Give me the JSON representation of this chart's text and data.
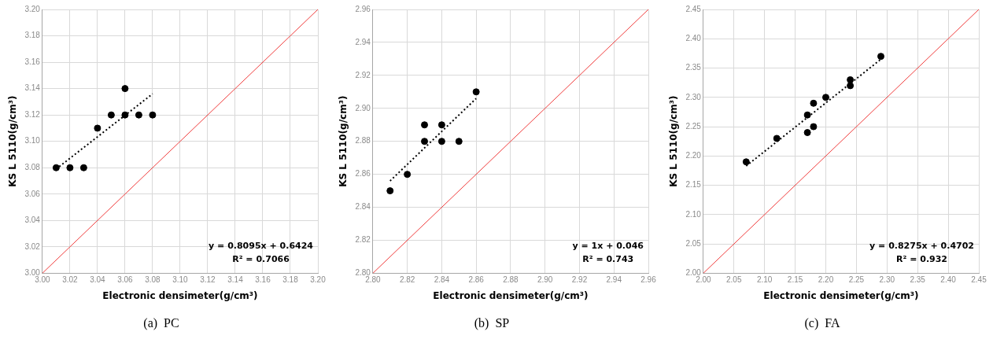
{
  "chart_data": [
    {
      "type": "scatter",
      "title": "(a)  PC",
      "xlabel": "Electronic densimeter(g/cm³)",
      "ylabel": "KS L 5110(g/cm³)",
      "annotations": [
        "y = 0.8095x + 0.6424",
        "R² = 0.7066"
      ],
      "xlim": [
        3.0,
        3.2
      ],
      "ylim": [
        3.0,
        3.2
      ],
      "xticks": [
        {
          "value": 3.0,
          "label": "3.00"
        },
        {
          "value": 3.02,
          "label": "3.02"
        },
        {
          "value": 3.04,
          "label": "3.04"
        },
        {
          "value": 3.06,
          "label": "3.06"
        },
        {
          "value": 3.08,
          "label": "3.08"
        },
        {
          "value": 3.1,
          "label": "3.10"
        },
        {
          "value": 3.12,
          "label": "3.12"
        },
        {
          "value": 3.14,
          "label": "3.14"
        },
        {
          "value": 3.16,
          "label": "3.16"
        },
        {
          "value": 3.18,
          "label": "3.18"
        },
        {
          "value": 3.2,
          "label": "3.20"
        }
      ],
      "yticks": [
        {
          "value": 3.0,
          "label": "3.00"
        },
        {
          "value": 3.02,
          "label": "3.02"
        },
        {
          "value": 3.04,
          "label": "3.04"
        },
        {
          "value": 3.06,
          "label": "3.06"
        },
        {
          "value": 3.08,
          "label": "3.08"
        },
        {
          "value": 3.1,
          "label": "3.10"
        },
        {
          "value": 3.12,
          "label": "3.12"
        },
        {
          "value": 3.14,
          "label": "3.14"
        },
        {
          "value": 3.16,
          "label": "3.16"
        },
        {
          "value": 3.18,
          "label": "3.18"
        },
        {
          "value": 3.2,
          "label": "3.20"
        }
      ],
      "grid": true,
      "series": [
        {
          "type": "scatter",
          "color": "#000000",
          "marker": "circle",
          "x": [
            3.01,
            3.02,
            3.03,
            3.04,
            3.05,
            3.06,
            3.06,
            3.07,
            3.08
          ],
          "values": [
            3.08,
            3.08,
            3.08,
            3.11,
            3.12,
            3.14,
            3.12,
            3.12,
            3.12
          ]
        },
        {
          "type": "line",
          "color": "#000000",
          "marker": "none",
          "line_style": "dotted",
          "x": [
            3.01,
            3.08
          ],
          "values": [
            3.079,
            3.136
          ]
        },
        {
          "type": "line",
          "color": "#f03c3c",
          "marker": "none",
          "line_style": "solid",
          "x": [
            3.0,
            3.2
          ],
          "values": [
            3.0,
            3.2
          ]
        }
      ]
    },
    {
      "type": "scatter",
      "title": "(b)  SP",
      "xlabel": "Electronic densimeter(g/cm³)",
      "ylabel": "KS L 5110(g/cm³)",
      "annotations": [
        "y = 1x + 0.046",
        "R² = 0.743"
      ],
      "xlim": [
        2.8,
        2.96
      ],
      "ylim": [
        2.8,
        2.96
      ],
      "xticks": [
        {
          "value": 2.8,
          "label": "2.80"
        },
        2.82,
        2.84,
        2.86,
        2.88,
        {
          "value": 2.9,
          "label": "2.90"
        },
        2.92,
        2.94,
        2.96
      ],
      "yticks": [
        {
          "value": 2.8,
          "label": "2.80"
        },
        2.82,
        2.84,
        2.86,
        2.88,
        {
          "value": 2.9,
          "label": "2.90"
        },
        2.92,
        2.94,
        2.96
      ],
      "grid": true,
      "series": [
        {
          "type": "scatter",
          "color": "#000000",
          "marker": "circle",
          "x": [
            2.81,
            2.82,
            2.83,
            2.83,
            2.84,
            2.84,
            2.85,
            2.86
          ],
          "values": [
            2.85,
            2.86,
            2.89,
            2.88,
            2.89,
            2.88,
            2.88,
            2.91
          ]
        },
        {
          "type": "line",
          "color": "#000000",
          "marker": "none",
          "line_style": "dotted",
          "x": [
            2.81,
            2.86
          ],
          "values": [
            2.856,
            2.906
          ]
        },
        {
          "type": "line",
          "color": "#f03c3c",
          "marker": "none",
          "line_style": "solid",
          "x": [
            2.8,
            2.96
          ],
          "values": [
            2.8,
            2.96
          ]
        }
      ]
    },
    {
      "type": "scatter",
      "title": "(c)  FA",
      "xlabel": "Electronic densimeter(g/cm³)",
      "ylabel": "KS L 5110(g/cm³)",
      "annotations": [
        "y = 0.8275x + 0.4702",
        "R² = 0.932"
      ],
      "xlim": [
        2.0,
        2.45
      ],
      "ylim": [
        2.0,
        2.45
      ],
      "xticks": [
        {
          "value": 2.0,
          "label": "2.00"
        },
        2.05,
        {
          "value": 2.1,
          "label": "2.10"
        },
        2.15,
        {
          "value": 2.2,
          "label": "2.20"
        },
        2.25,
        {
          "value": 2.3,
          "label": "2.30"
        },
        2.35,
        {
          "value": 2.4,
          "label": "2.40"
        },
        2.45
      ],
      "yticks": [
        {
          "value": 2.0,
          "label": "2.00"
        },
        2.05,
        {
          "value": 2.1,
          "label": "2.10"
        },
        2.15,
        {
          "value": 2.2,
          "label": "2.20"
        },
        2.25,
        {
          "value": 2.3,
          "label": "2.30"
        },
        2.35,
        {
          "value": 2.4,
          "label": "2.40"
        },
        2.45
      ],
      "grid": true,
      "series": [
        {
          "type": "scatter",
          "color": "#000000",
          "marker": "circle",
          "x": [
            2.07,
            2.12,
            2.17,
            2.17,
            2.18,
            2.18,
            2.2,
            2.24,
            2.24,
            2.29
          ],
          "values": [
            2.19,
            2.23,
            2.27,
            2.24,
            2.29,
            2.25,
            2.3,
            2.33,
            2.32,
            2.37
          ]
        },
        {
          "type": "line",
          "color": "#000000",
          "marker": "none",
          "line_style": "dotted",
          "x": [
            2.07,
            2.29
          ],
          "values": [
            2.183,
            2.365
          ]
        },
        {
          "type": "line",
          "color": "#f03c3c",
          "marker": "none",
          "line_style": "solid",
          "x": [
            2.0,
            2.45
          ],
          "values": [
            2.0,
            2.45
          ]
        }
      ]
    }
  ]
}
